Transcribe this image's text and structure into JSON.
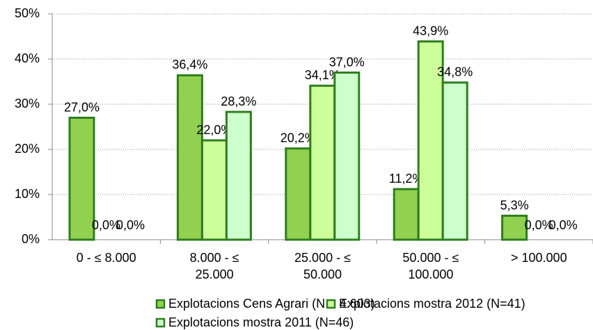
{
  "chart_data": {
    "type": "bar",
    "categories": [
      "0 - ≤ 8.000",
      "8.000 - ≤\n25.000",
      "25.000 - ≤\n50.000",
      "50.000 - ≤\n100.000",
      "> 100.000"
    ],
    "series": [
      {
        "name": "Explotacions Cens Agrari (N = 4.603)",
        "color": "#92d050",
        "values": [
          27.0,
          36.4,
          20.2,
          11.2,
          5.3
        ],
        "value_labels": [
          "27,0%",
          "36,4%",
          "20,2%",
          "11,2%",
          "5,3%"
        ]
      },
      {
        "name": "Explotacions mostra 2012 (N=41)",
        "color": "#ccff99",
        "values": [
          0.0,
          22.0,
          34.1,
          43.9,
          0.0
        ],
        "value_labels": [
          "0,0%",
          "22,0%",
          "34,1%",
          "43,9%",
          "0,0%"
        ]
      },
      {
        "name": "Explotacions mostra 2011 (N=46)",
        "color": "#ccffcc",
        "values": [
          0.0,
          28.3,
          37.0,
          34.8,
          0.0
        ],
        "value_labels": [
          "0,0%",
          "28,3%",
          "37,0%",
          "34,8%",
          "0,0%"
        ]
      }
    ],
    "ylim": [
      0,
      50
    ],
    "yticks": [
      {
        "value": 0,
        "label": "0%"
      },
      {
        "value": 10,
        "label": "10%"
      },
      {
        "value": 20,
        "label": "20%"
      },
      {
        "value": 30,
        "label": "30%"
      },
      {
        "value": 40,
        "label": "40%"
      },
      {
        "value": 50,
        "label": "50%"
      }
    ],
    "grid": true,
    "legend": "bottom"
  }
}
